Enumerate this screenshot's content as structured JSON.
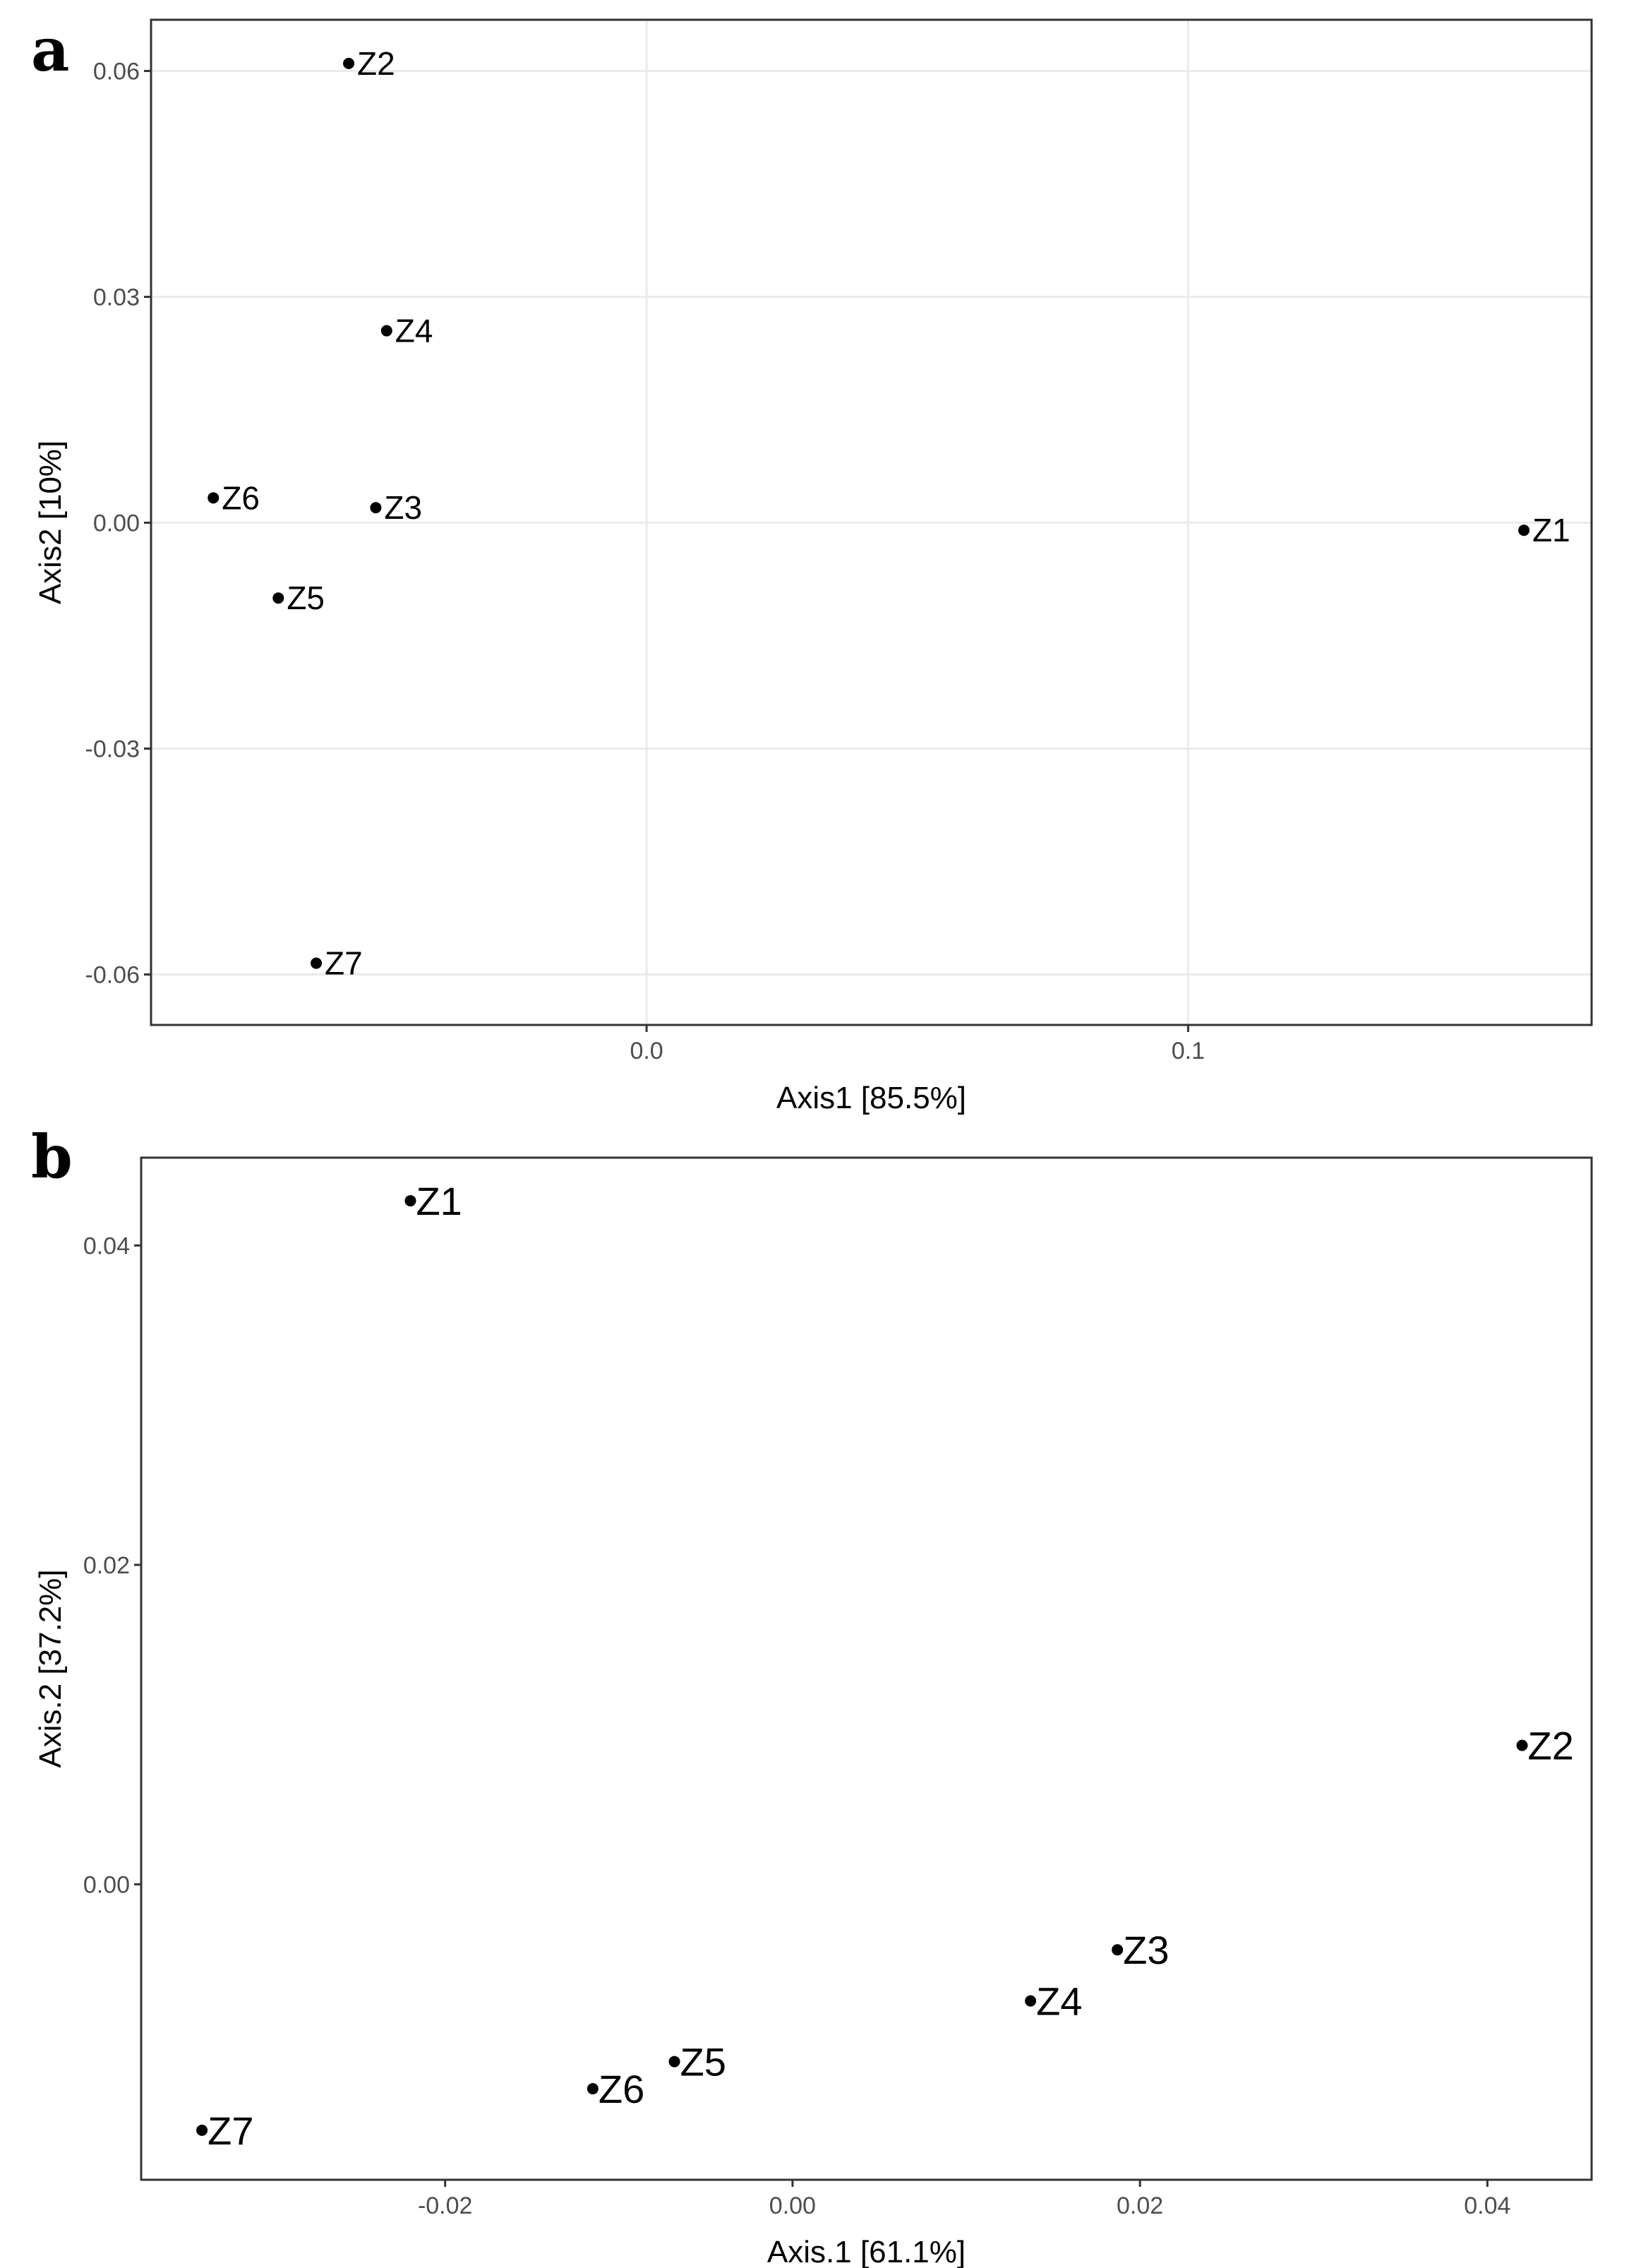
{
  "chart_data": [
    {
      "type": "scatter",
      "panel": "a",
      "xlabel": "Axis1   [85.5%]",
      "ylabel": "Axis2   [10%]",
      "xlim": [
        -0.0915,
        0.1745
      ],
      "ylim": [
        -0.0667,
        0.0668
      ],
      "xticks": [
        0.0,
        0.1
      ],
      "xtick_labels": [
        "0.0",
        "0.1"
      ],
      "yticks": [
        -0.06,
        -0.03,
        0.0,
        0.03,
        0.06
      ],
      "ytick_labels": [
        "-0.06",
        "-0.03",
        "0.00",
        "0.03",
        "0.06"
      ],
      "grid": true,
      "points": [
        {
          "label": "Z1",
          "x": 0.162,
          "y": -0.001
        },
        {
          "label": "Z2",
          "x": -0.055,
          "y": 0.061
        },
        {
          "label": "Z3",
          "x": -0.05,
          "y": 0.002
        },
        {
          "label": "Z4",
          "x": -0.048,
          "y": 0.0255
        },
        {
          "label": "Z5",
          "x": -0.068,
          "y": -0.01
        },
        {
          "label": "Z6",
          "x": -0.08,
          "y": 0.0033
        },
        {
          "label": "Z7",
          "x": -0.061,
          "y": -0.0585
        }
      ]
    },
    {
      "type": "scatter",
      "panel": "b",
      "xlabel": "Axis.1   [61.1%]",
      "ylabel": "Axis.2   [37.2%]",
      "xlim": [
        -0.0375,
        0.046
      ],
      "ylim": [
        -0.0185,
        0.0455
      ],
      "xticks": [
        -0.02,
        0.0,
        0.02,
        0.04
      ],
      "xtick_labels": [
        "-0.02",
        "0.00",
        "0.02",
        "0.04"
      ],
      "yticks": [
        0.0,
        0.02,
        0.04
      ],
      "ytick_labels": [
        "0.00",
        "0.02",
        "0.04"
      ],
      "grid": false,
      "points": [
        {
          "label": "Z1",
          "x": -0.022,
          "y": 0.0428
        },
        {
          "label": "Z2",
          "x": 0.042,
          "y": 0.0087
        },
        {
          "label": "Z3",
          "x": 0.0187,
          "y": -0.0041
        },
        {
          "label": "Z4",
          "x": 0.0137,
          "y": -0.0073
        },
        {
          "label": "Z5",
          "x": -0.0068,
          "y": -0.0111
        },
        {
          "label": "Z6",
          "x": -0.0115,
          "y": -0.0128
        },
        {
          "label": "Z7",
          "x": -0.034,
          "y": -0.0154
        }
      ]
    }
  ]
}
